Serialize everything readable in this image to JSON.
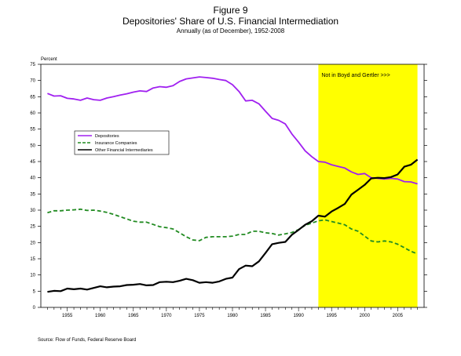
{
  "figure": {
    "label": "Figure 9",
    "title": "Depositories' Share of U.S. Financial Intermediation",
    "subtitle": "Annually (as of December), 1952-2008",
    "source": "Source: Flow of Funds, Federal Reserve Board"
  },
  "chart_data": {
    "type": "line",
    "ylabel": "Percent",
    "ylim": [
      0,
      75
    ],
    "yticks": [
      0,
      5,
      10,
      15,
      20,
      25,
      30,
      35,
      40,
      45,
      50,
      55,
      60,
      65,
      70,
      75
    ],
    "xlim": [
      1951,
      2009
    ],
    "xticks": [
      1955,
      1960,
      1965,
      1970,
      1975,
      1980,
      1985,
      1990,
      1995,
      2000,
      2005
    ],
    "grid": false,
    "legend_position": "middle-left",
    "shaded_region": {
      "x0": 1993,
      "x1": 2008,
      "label": "Not in Boyd and Gertler >>>",
      "color": "#ffff00"
    },
    "x": [
      1952,
      1953,
      1954,
      1955,
      1956,
      1957,
      1958,
      1959,
      1960,
      1961,
      1962,
      1963,
      1964,
      1965,
      1966,
      1967,
      1968,
      1969,
      1970,
      1971,
      1972,
      1973,
      1974,
      1975,
      1976,
      1977,
      1978,
      1979,
      1980,
      1981,
      1982,
      1983,
      1984,
      1985,
      1986,
      1987,
      1988,
      1989,
      1990,
      1991,
      1992,
      1993,
      1994,
      1995,
      1996,
      1997,
      1998,
      1999,
      2000,
      2001,
      2002,
      2003,
      2004,
      2005,
      2006,
      2007,
      2008
    ],
    "series": [
      {
        "name": "Depositories",
        "color": "#a020f0",
        "style": "solid",
        "values": [
          66.0,
          65.2,
          65.3,
          64.5,
          64.3,
          63.9,
          64.6,
          64.1,
          63.9,
          64.6,
          65.0,
          65.5,
          65.9,
          66.4,
          66.8,
          66.6,
          67.7,
          68.1,
          67.9,
          68.4,
          69.7,
          70.5,
          70.8,
          71.1,
          70.9,
          70.7,
          70.3,
          70.0,
          68.7,
          66.6,
          63.7,
          63.9,
          62.8,
          60.5,
          58.3,
          57.7,
          56.6,
          53.5,
          51.0,
          48.3,
          46.5,
          45.0,
          44.8,
          44.0,
          43.5,
          43.0,
          41.8,
          41.0,
          41.3,
          40.0,
          39.8,
          39.6,
          39.8,
          39.6,
          38.8,
          38.7,
          38.1
        ]
      },
      {
        "name": "Insurance Companies",
        "color": "#228b22",
        "style": "dashed",
        "values": [
          29.2,
          29.8,
          29.8,
          30.0,
          30.1,
          30.3,
          29.9,
          30.0,
          29.7,
          29.3,
          28.7,
          28.0,
          27.3,
          26.6,
          26.3,
          26.3,
          25.6,
          24.9,
          24.6,
          24.2,
          23.0,
          21.8,
          20.8,
          20.6,
          21.6,
          21.8,
          21.8,
          21.8,
          22.0,
          22.5,
          22.5,
          23.5,
          23.5,
          23.0,
          22.8,
          22.3,
          22.7,
          23.1,
          24.0,
          25.3,
          26.0,
          26.7,
          27.0,
          26.5,
          26.0,
          25.5,
          24.2,
          23.5,
          22.0,
          20.5,
          20.2,
          20.5,
          20.2,
          19.5,
          18.4,
          17.3,
          16.5
        ]
      },
      {
        "name": "Other Financial Intermediaries",
        "color": "#000000",
        "style": "solid",
        "values": [
          4.8,
          5.1,
          5.0,
          5.8,
          5.6,
          5.8,
          5.5,
          6.0,
          6.5,
          6.2,
          6.4,
          6.5,
          6.9,
          7.0,
          7.2,
          6.8,
          6.9,
          7.8,
          7.9,
          7.8,
          8.2,
          8.8,
          8.4,
          7.6,
          7.8,
          7.6,
          8.0,
          8.8,
          9.2,
          11.8,
          12.9,
          12.7,
          14.2,
          16.8,
          19.5,
          19.9,
          20.2,
          22.4,
          23.9,
          25.5,
          26.6,
          28.3,
          28.0,
          29.6,
          30.7,
          31.9,
          34.8,
          36.3,
          37.8,
          39.8,
          40.0,
          39.9,
          40.2,
          41.0,
          43.4,
          44.0,
          45.6
        ]
      }
    ]
  }
}
